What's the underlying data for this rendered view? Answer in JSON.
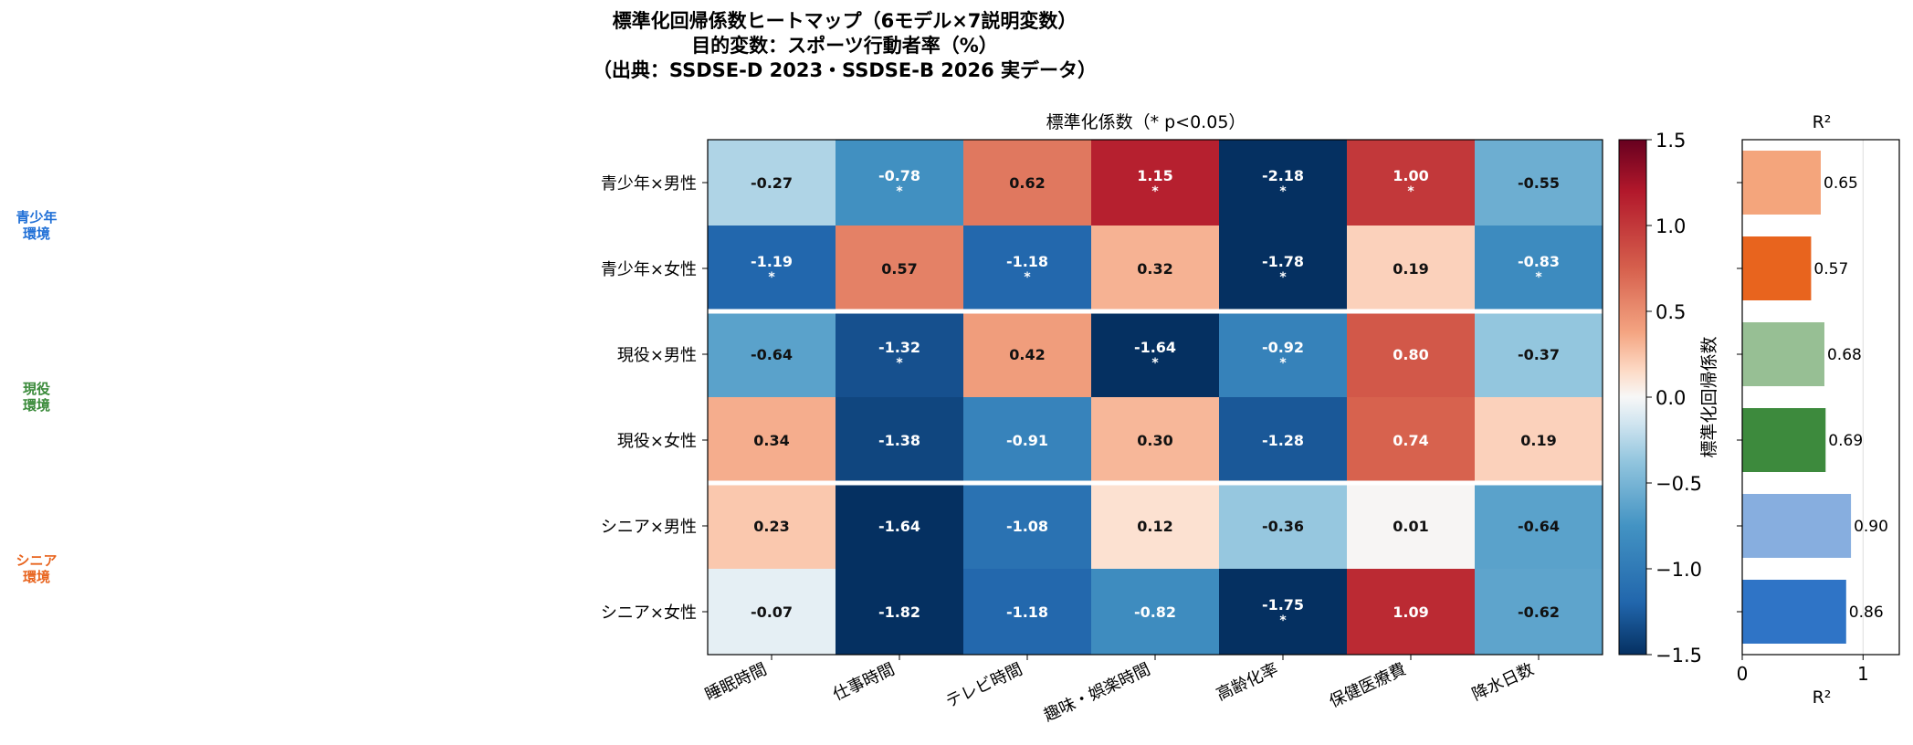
{
  "chart_data": [
    {
      "type": "heatmap",
      "title_lines": [
        "標準化回帰係数ヒートマップ（6モデル×7説明変数）",
        "目的変数：スポーツ行動者率（%）",
        "（出典：SSDSE-D 2023・SSDSE-B 2026 実データ）"
      ],
      "subtitle": "標準化係数（* p<0.05）",
      "columns": [
        "睡眠時間",
        "仕事時間",
        "テレビ時間",
        "趣味・娯楽時間",
        "高齢化率",
        "保健医療費",
        "降水日数"
      ],
      "rows": [
        "青少年×男性",
        "青少年×女性",
        "現役×男性",
        "現役×女性",
        "シニア×男性",
        "シニア×女性"
      ],
      "groups": [
        {
          "label_lines": [
            "青少年",
            "環境"
          ],
          "rows": [
            0,
            1
          ],
          "color": "#1f6fd6"
        },
        {
          "label_lines": [
            "現役",
            "環境"
          ],
          "rows": [
            2,
            3
          ],
          "color": "#3a8a3a"
        },
        {
          "label_lines": [
            "シニア",
            "環境"
          ],
          "rows": [
            4,
            5
          ],
          "color": "#e8641e"
        }
      ],
      "values": [
        [
          -0.27,
          -0.78,
          0.62,
          1.15,
          -2.18,
          1.0,
          -0.55
        ],
        [
          -1.19,
          0.57,
          -1.18,
          0.32,
          -1.78,
          0.19,
          -0.83
        ],
        [
          -0.64,
          -1.32,
          0.42,
          -1.64,
          -0.92,
          0.8,
          -0.37
        ],
        [
          0.34,
          -1.38,
          -0.91,
          0.3,
          -1.28,
          0.74,
          0.19
        ],
        [
          0.23,
          -1.64,
          -1.08,
          0.12,
          -0.36,
          0.01,
          -0.64
        ],
        [
          -0.07,
          -1.82,
          -1.18,
          -0.82,
          -1.75,
          1.09,
          -0.62
        ]
      ],
      "labels": [
        [
          "-0.27",
          "-0.78",
          "0.62",
          "1.15",
          "-2.18",
          "1.00",
          "-0.55"
        ],
        [
          "-1.19",
          "0.57",
          "-1.18",
          "0.32",
          "-1.78",
          "0.19",
          "-0.83"
        ],
        [
          "-0.64",
          "-1.32",
          "0.42",
          "-1.64",
          "-0.92",
          "0.80",
          "-0.37"
        ],
        [
          "0.34",
          "-1.38",
          "-0.91",
          "0.30",
          "-1.28",
          "0.74",
          "0.19"
        ],
        [
          "0.23",
          "-1.64",
          "-1.08",
          "0.12",
          "-0.36",
          "0.01",
          "-0.64"
        ],
        [
          "-0.07",
          "-1.82",
          "-1.18",
          "-0.82",
          "-1.75",
          "1.09",
          "-0.62"
        ]
      ],
      "significant": [
        [
          false,
          true,
          false,
          true,
          true,
          true,
          false
        ],
        [
          true,
          false,
          true,
          false,
          true,
          false,
          true
        ],
        [
          false,
          true,
          false,
          true,
          true,
          false,
          false
        ],
        [
          false,
          false,
          false,
          false,
          false,
          false,
          false
        ],
        [
          false,
          false,
          false,
          false,
          false,
          false,
          false
        ],
        [
          false,
          false,
          false,
          false,
          true,
          false,
          false
        ]
      ],
      "colorbar": {
        "label": "標準化回帰係数",
        "range": [
          -1.5,
          1.5
        ],
        "ticks": [
          "1.5",
          "1.0",
          "0.5",
          "0.0",
          "-0.5",
          "-1.0",
          "-1.5"
        ],
        "colormap": "RdBu_r"
      }
    },
    {
      "type": "bar",
      "orientation": "horizontal",
      "title": "R²",
      "xlabel": "R²",
      "xlim": [
        0,
        1.3
      ],
      "xticks": [
        "0",
        "1"
      ],
      "categories": [
        "青少年×男性",
        "青少年×女性",
        "現役×男性",
        "現役×女性",
        "シニア×男性",
        "シニア×女性"
      ],
      "values": [
        0.65,
        0.57,
        0.68,
        0.69,
        0.9,
        0.86
      ],
      "value_labels": [
        "0.65",
        "0.57",
        "0.68",
        "0.69",
        "0.90",
        "0.86"
      ],
      "colors": [
        "#f4a57c",
        "#e8641e",
        "#97bf94",
        "#3d8a3d",
        "#87aedf",
        "#2f74c6"
      ],
      "grid": "x"
    }
  ]
}
